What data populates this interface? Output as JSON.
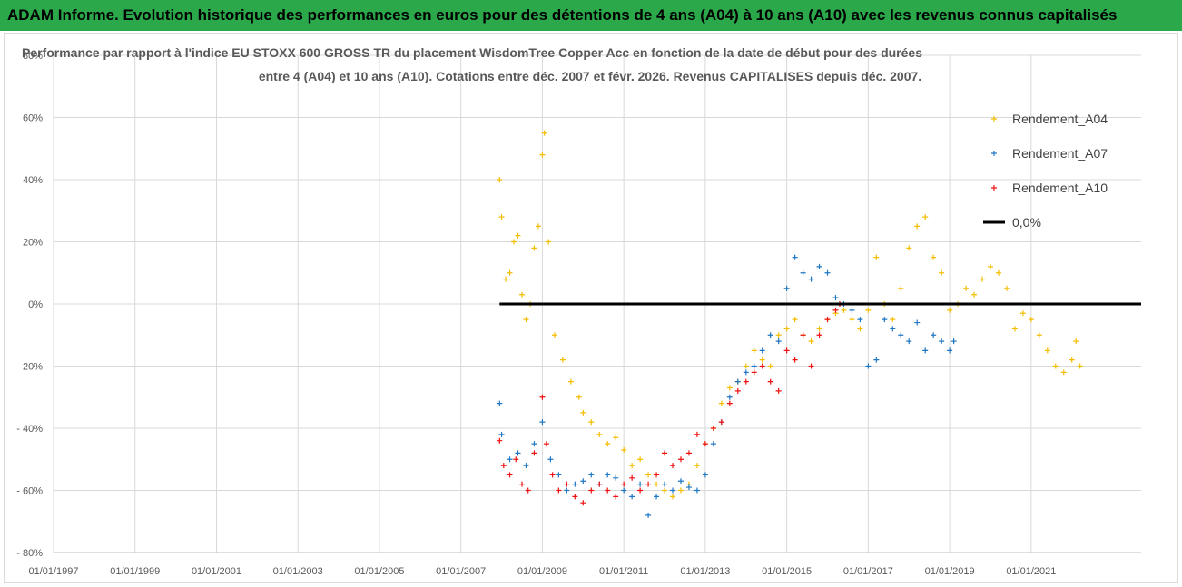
{
  "header": {
    "title": "ADAM Informe. Evolution historique des performances en euros pour des détentions de 4 ans (A04) à 10 ans (A10) avec les revenus connus capitalisés"
  },
  "colors": {
    "header_bg": "#2aa84a",
    "A04": "#f5bd00",
    "A07": "#1f77c4",
    "A10": "#ee1111",
    "zero": "#000000",
    "grid": "#d9d9d9"
  },
  "chart_data": {
    "type": "scatter",
    "title_lines": [
      "Performance par rapport à l'indice EU STOXX 600 GROSS TR  du placement WisdomTree Copper Acc en fonction de la date de début pour des durées",
      "entre 4 (A04) et 10 ans (A10). Cotations entre déc. 2007 et févr. 2026. Revenus CAPITALISES depuis déc. 2007."
    ],
    "xlabel": "",
    "ylabel": "",
    "x_range": [
      1997.0,
      2023.7
    ],
    "ylim": [
      -80,
      80
    ],
    "y_ticks": [
      80,
      60,
      40,
      20,
      0,
      -20,
      -40,
      -60,
      -80
    ],
    "y_tick_labels": [
      "80%",
      "60%",
      "40%",
      "20%",
      "0%",
      "- 20%",
      "- 40%",
      "- 60%",
      "- 80%"
    ],
    "x_tick_years": [
      1997,
      1999,
      2001,
      2003,
      2005,
      2007,
      2009,
      2011,
      2013,
      2015,
      2017,
      2019,
      2021
    ],
    "x_tick_labels": [
      "01/01/1997",
      "01/01/1999",
      "01/01/2001",
      "01/01/2003",
      "01/01/2005",
      "01/01/2007",
      "01/01/2009",
      "01/01/2011",
      "01/01/2013",
      "01/01/2015",
      "01/01/2017",
      "01/01/2019",
      "01/01/2021"
    ],
    "grid": "vertical and horizontal",
    "legend_position": "top-right",
    "series": [
      {
        "name": "Rendement_A04",
        "marker": "+",
        "x": [
          2007.95,
          2008.0,
          2008.1,
          2008.2,
          2008.3,
          2008.4,
          2008.5,
          2008.6,
          2008.7,
          2008.8,
          2008.9,
          2009.0,
          2009.05,
          2009.15,
          2009.3,
          2009.5,
          2009.7,
          2009.9,
          2010.0,
          2010.2,
          2010.4,
          2010.6,
          2010.8,
          2011.0,
          2011.2,
          2011.4,
          2011.6,
          2011.8,
          2012.0,
          2012.2,
          2012.4,
          2012.6,
          2012.8,
          2013.0,
          2013.2,
          2013.4,
          2013.6,
          2013.8,
          2014.0,
          2014.2,
          2014.4,
          2014.6,
          2014.8,
          2015.0,
          2015.2,
          2015.4,
          2015.6,
          2015.8,
          2016.0,
          2016.2,
          2016.4,
          2016.6,
          2016.8,
          2017.0,
          2017.2,
          2017.4,
          2017.6,
          2017.8,
          2018.0,
          2018.2,
          2018.4,
          2018.6,
          2018.8,
          2019.0,
          2019.2,
          2019.4,
          2019.6,
          2019.8,
          2020.0,
          2020.2,
          2020.4,
          2020.6,
          2020.8,
          2021.0,
          2021.2,
          2021.4,
          2021.6,
          2021.8,
          2022.0,
          2022.1,
          2022.2
        ],
        "values": [
          40,
          28,
          8,
          10,
          20,
          22,
          3,
          -5,
          0,
          18,
          25,
          48,
          55,
          20,
          -10,
          -18,
          -25,
          -30,
          -35,
          -38,
          -42,
          -45,
          -43,
          -47,
          -52,
          -50,
          -55,
          -58,
          -60,
          -62,
          -60,
          -58,
          -52,
          -45,
          -40,
          -32,
          -27,
          -25,
          -20,
          -15,
          -18,
          -20,
          -10,
          -8,
          -5,
          -10,
          -12,
          -8,
          -5,
          -3,
          -2,
          -5,
          -8,
          -2,
          15,
          0,
          -5,
          5,
          18,
          25,
          28,
          15,
          10,
          -2,
          0,
          5,
          3,
          8,
          12,
          10,
          5,
          -8,
          -3,
          -5,
          -10,
          -15,
          -20,
          -22,
          -18,
          -12,
          -20
        ]
      },
      {
        "name": "Rendement_A07",
        "marker": "+",
        "x": [
          2007.95,
          2008.0,
          2008.2,
          2008.4,
          2008.6,
          2008.8,
          2009.0,
          2009.2,
          2009.4,
          2009.6,
          2009.8,
          2010.0,
          2010.2,
          2010.4,
          2010.6,
          2010.8,
          2011.0,
          2011.2,
          2011.4,
          2011.6,
          2011.8,
          2012.0,
          2012.2,
          2012.4,
          2012.6,
          2012.8,
          2013.0,
          2013.2,
          2013.4,
          2013.6,
          2013.8,
          2014.0,
          2014.2,
          2014.4,
          2014.6,
          2014.8,
          2015.0,
          2015.2,
          2015.4,
          2015.6,
          2015.8,
          2016.0,
          2016.2,
          2016.4,
          2016.6,
          2016.8,
          2017.0,
          2017.2,
          2017.4,
          2017.6,
          2017.8,
          2018.0,
          2018.2,
          2018.4,
          2018.6,
          2018.8,
          2019.0,
          2019.1
        ],
        "values": [
          -32,
          -42,
          -50,
          -48,
          -52,
          -45,
          -38,
          -50,
          -55,
          -60,
          -58,
          -57,
          -55,
          -58,
          -55,
          -56,
          -60,
          -62,
          -58,
          -68,
          -62,
          -58,
          -60,
          -57,
          -59,
          -60,
          -55,
          -45,
          -38,
          -30,
          -25,
          -22,
          -20,
          -15,
          -10,
          -12,
          5,
          15,
          10,
          8,
          12,
          10,
          2,
          0,
          -2,
          -5,
          -20,
          -18,
          -5,
          -8,
          -10,
          -12,
          -6,
          -15,
          -10,
          -12,
          -15,
          -12
        ]
      },
      {
        "name": "Rendement_A10",
        "marker": "+",
        "x": [
          2007.95,
          2008.05,
          2008.2,
          2008.35,
          2008.5,
          2008.65,
          2008.8,
          2009.0,
          2009.1,
          2009.25,
          2009.4,
          2009.6,
          2009.8,
          2010.0,
          2010.2,
          2010.4,
          2010.6,
          2010.8,
          2011.0,
          2011.2,
          2011.4,
          2011.6,
          2011.8,
          2012.0,
          2012.2,
          2012.4,
          2012.6,
          2012.8,
          2013.0,
          2013.2,
          2013.4,
          2013.6,
          2013.8,
          2014.0,
          2014.2,
          2014.4,
          2014.6,
          2014.8,
          2015.0,
          2015.2,
          2015.4,
          2015.6,
          2015.8,
          2016.0,
          2016.2,
          2016.3
        ],
        "values": [
          -44,
          -52,
          -55,
          -50,
          -58,
          -60,
          -48,
          -30,
          -45,
          -55,
          -60,
          -58,
          -62,
          -64,
          -60,
          -58,
          -60,
          -62,
          -58,
          -56,
          -60,
          -58,
          -55,
          -48,
          -52,
          -50,
          -48,
          -42,
          -45,
          -40,
          -38,
          -32,
          -28,
          -25,
          -22,
          -20,
          -25,
          -28,
          -15,
          -18,
          -10,
          -20,
          -10,
          -5,
          -2,
          0
        ]
      }
    ],
    "zero_line": {
      "name": "0,0%",
      "x_start": 2007.95,
      "x_end": 2023.7,
      "value": 0
    },
    "legend": [
      "Rendement_A04",
      "Rendement_A07",
      "Rendement_A10",
      "0,0%"
    ]
  }
}
